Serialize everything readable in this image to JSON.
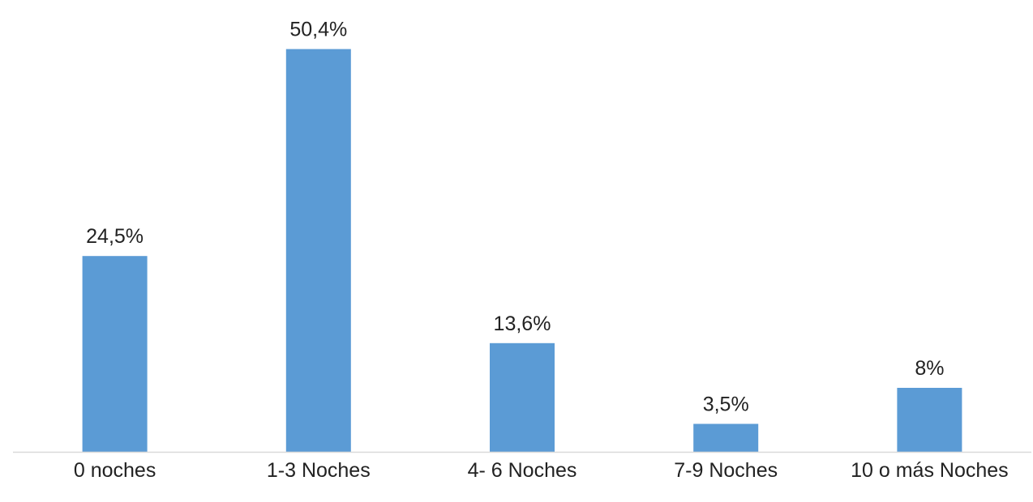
{
  "chart_data": {
    "type": "bar",
    "categories": [
      "0 noches",
      "1-3 Noches",
      "4- 6 Noches",
      "7-9 Noches",
      "10 o más Noches"
    ],
    "values": [
      24.5,
      50.4,
      13.6,
      3.5,
      8
    ],
    "data_labels": [
      "24,5%",
      "50,4%",
      "13,6%",
      "3,5%",
      "8%"
    ],
    "title": "",
    "xlabel": "",
    "ylabel": "",
    "ylim": [
      0,
      56
    ],
    "grid": false,
    "legend": "none",
    "colors": {
      "bar": "#5B9BD5",
      "axis": "#D9D9D9",
      "text": "#222222"
    }
  }
}
